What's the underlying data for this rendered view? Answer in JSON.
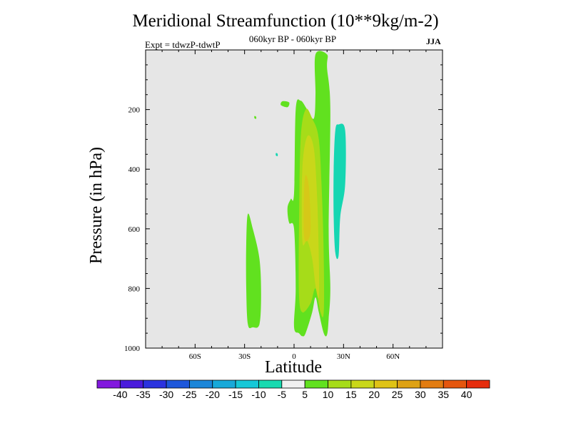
{
  "chart_data": {
    "type": "heatmap",
    "title": "Meridional Streamfunction (10**9kg/m-2)",
    "subtitle": "060kyr BP - 060kyr BP",
    "left_label": "Expt = tdwzP-tdwtP",
    "right_label": "JJA",
    "xlabel": "Latitude",
    "ylabel": "Pressure (in hPa)",
    "xlim": [
      -90,
      90
    ],
    "ylim": [
      0,
      1000
    ],
    "x_ticks": [
      {
        "value": -60,
        "label": "60S"
      },
      {
        "value": -30,
        "label": "30S"
      },
      {
        "value": 0,
        "label": "0"
      },
      {
        "value": 30,
        "label": "30N"
      },
      {
        "value": 60,
        "label": "60N"
      }
    ],
    "y_ticks": [
      {
        "value": 200,
        "label": "200"
      },
      {
        "value": 400,
        "label": "400"
      },
      {
        "value": 600,
        "label": "600"
      },
      {
        "value": 800,
        "label": "800"
      },
      {
        "value": 1000,
        "label": "1000"
      }
    ],
    "background_color": "#e6e6e6",
    "regions": [
      {
        "name": "nh-positive-cell",
        "level": 5,
        "color": "#61e11f",
        "points": [
          [
            13,
            15
          ],
          [
            20,
            15
          ],
          [
            20,
            60
          ],
          [
            22,
            200
          ],
          [
            21,
            600
          ],
          [
            22,
            800
          ],
          [
            21,
            900
          ],
          [
            20,
            955
          ],
          [
            18,
            950
          ],
          [
            15,
            880
          ],
          [
            13,
            830
          ],
          [
            11,
            880
          ],
          [
            7,
            950
          ],
          [
            5,
            960
          ],
          [
            3,
            950
          ],
          [
            0,
            930
          ],
          [
            1,
            800
          ],
          [
            0,
            600
          ],
          [
            -3,
            580
          ],
          [
            -4,
            530
          ],
          [
            -2,
            500
          ],
          [
            0,
            480
          ],
          [
            1,
            200
          ],
          [
            4,
            170
          ],
          [
            8,
            200
          ],
          [
            12,
            230
          ],
          [
            13,
            150
          ]
        ]
      },
      {
        "name": "nh-cell-level-10",
        "level": 10,
        "color": "#a6dc19",
        "points": [
          [
            7,
            200
          ],
          [
            11,
            230
          ],
          [
            15,
            300
          ],
          [
            17,
            500
          ],
          [
            18,
            700
          ],
          [
            18,
            880
          ],
          [
            16,
            880
          ],
          [
            13,
            800
          ],
          [
            10,
            850
          ],
          [
            5,
            880
          ],
          [
            3,
            820
          ],
          [
            3,
            600
          ],
          [
            4,
            300
          ]
        ]
      },
      {
        "name": "nh-cell-level-15",
        "level": 15,
        "color": "#c9d71a",
        "points": [
          [
            8,
            290
          ],
          [
            12,
            330
          ],
          [
            14,
            500
          ],
          [
            15,
            700
          ],
          [
            15,
            830
          ],
          [
            13,
            790
          ],
          [
            11,
            700
          ],
          [
            8,
            640
          ],
          [
            5,
            640
          ],
          [
            5,
            400
          ]
        ]
      },
      {
        "name": "nh-cell-level-20",
        "level": 20,
        "color": "#d6c818",
        "points": [
          [
            7,
            420
          ],
          [
            9,
            460
          ],
          [
            10,
            600
          ],
          [
            8,
            640
          ],
          [
            6,
            620
          ],
          [
            6,
            480
          ]
        ]
      },
      {
        "name": "sh-positive-cell",
        "level": 5,
        "color": "#61e11f",
        "points": [
          [
            -28,
            550
          ],
          [
            -25,
            600
          ],
          [
            -21,
            700
          ],
          [
            -20,
            820
          ],
          [
            -21,
            920
          ],
          [
            -25,
            930
          ],
          [
            -28,
            920
          ],
          [
            -29,
            800
          ],
          [
            -29,
            650
          ]
        ]
      },
      {
        "name": "positive-blob-a",
        "level": 5,
        "color": "#61e11f",
        "points": [
          [
            -7,
            172
          ],
          [
            -3,
            176
          ],
          [
            -4,
            192
          ],
          [
            -8,
            185
          ]
        ]
      },
      {
        "name": "positive-blob-b",
        "level": 5,
        "color": "#61e11f",
        "points": [
          [
            -24,
            222
          ],
          [
            -23,
            224
          ],
          [
            -23,
            231
          ],
          [
            -24,
            229
          ]
        ]
      },
      {
        "name": "nh-negative-cell",
        "level": -5,
        "color": "#15d6b2",
        "points": [
          [
            27,
            250
          ],
          [
            31,
            270
          ],
          [
            31,
            450
          ],
          [
            28,
            560
          ],
          [
            27,
            690
          ],
          [
            25,
            680
          ],
          [
            24,
            560
          ],
          [
            24,
            400
          ],
          [
            25,
            270
          ]
        ]
      },
      {
        "name": "negative-blob",
        "level": -5,
        "color": "#15d6b2",
        "points": [
          [
            -11,
            346
          ],
          [
            -10,
            348
          ],
          [
            -10,
            356
          ],
          [
            -11,
            354
          ]
        ]
      }
    ],
    "colorbar": {
      "levels": [
        "-40",
        "-35",
        "-30",
        "-25",
        "-20",
        "-15",
        "-10",
        "-5",
        "5",
        "10",
        "15",
        "20",
        "25",
        "30",
        "35",
        "40"
      ],
      "colors": [
        "#8218de",
        "#4a1bdc",
        "#2b33df",
        "#1d57db",
        "#1b86d9",
        "#18a9d9",
        "#16c8d7",
        "#18dab0",
        "#f0f0f0",
        "#61e11f",
        "#a6dc19",
        "#c9d71a",
        "#dfc316",
        "#dea214",
        "#e27c11",
        "#e5560e",
        "#e62d0d"
      ]
    }
  }
}
